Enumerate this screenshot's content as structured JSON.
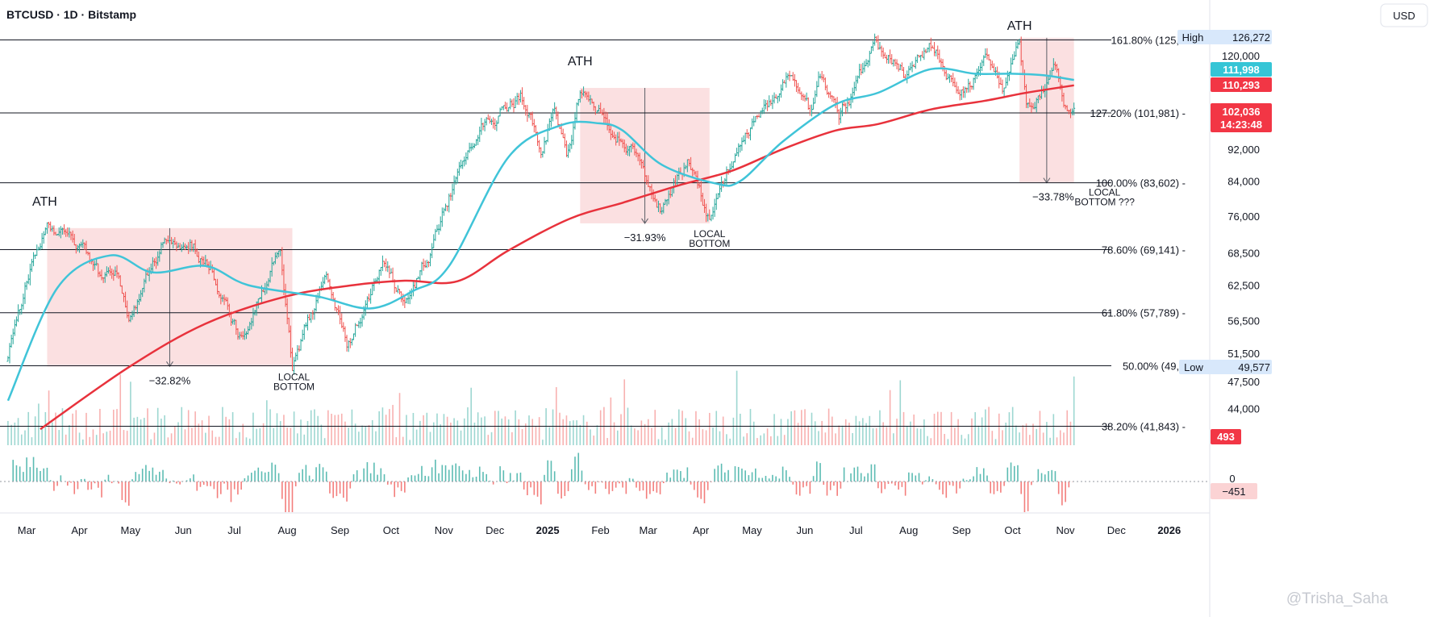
{
  "header": {
    "title": "BTCUSD · 1D · Bitstamp"
  },
  "currency_button": "USD",
  "watermark": "@Trisha_Saha",
  "colors": {
    "up": "#26a69a",
    "down": "#ef5350",
    "ma50": "#40c4d8",
    "ma200": "#e8323c",
    "zone": "#f7c6c9",
    "tag_red": "#f23645",
    "tag_cyan": "#35c5d6",
    "tag_high": "#d8e8fb"
  },
  "chart_data": {
    "type": "candlestick",
    "title": "BTCUSD · 1D · Bitstamp",
    "x_labels": [
      "Mar",
      "Apr",
      "May",
      "Jun",
      "Jul",
      "Aug",
      "Sep",
      "Oct",
      "Nov",
      "Dec",
      "2025",
      "Feb",
      "Mar",
      "Apr",
      "May",
      "Jun",
      "Jul",
      "Aug",
      "Sep",
      "Oct",
      "Nov",
      "Dec",
      "2026"
    ],
    "y_ticks": [
      "120,000",
      "92,000",
      "84,000",
      "76,000",
      "68,500",
      "62,500",
      "56,500",
      "51,500",
      "47,500",
      "44,000"
    ],
    "y_scale": "log",
    "price_path": [
      [
        "2024-02-20",
        51500
      ],
      [
        "2024-03-05",
        67000
      ],
      [
        "2024-03-14",
        73000
      ],
      [
        "2024-04-01",
        70000
      ],
      [
        "2024-04-13",
        64000
      ],
      [
        "2024-04-25",
        63500
      ],
      [
        "2024-05-01",
        57000
      ],
      [
        "2024-05-20",
        70000
      ],
      [
        "2024-06-06",
        71000
      ],
      [
        "2024-06-20",
        64500
      ],
      [
        "2024-07-05",
        54000
      ],
      [
        "2024-07-29",
        69500
      ],
      [
        "2024-08-05",
        49600
      ],
      [
        "2024-08-25",
        64000
      ],
      [
        "2024-09-06",
        52600
      ],
      [
        "2024-09-27",
        66000
      ],
      [
        "2024-10-10",
        59000
      ],
      [
        "2024-10-29",
        72000
      ],
      [
        "2024-11-13",
        90000
      ],
      [
        "2024-11-22",
        99000
      ],
      [
        "2024-12-17",
        107000
      ],
      [
        "2024-12-30",
        92000
      ],
      [
        "2025-01-06",
        102000
      ],
      [
        "2025-01-13",
        90000
      ],
      [
        "2025-01-21",
        109000
      ],
      [
        "2025-02-03",
        101000
      ],
      [
        "2025-02-24",
        89000
      ],
      [
        "2025-03-10",
        78000
      ],
      [
        "2025-03-25",
        88000
      ],
      [
        "2025-04-07",
        74500
      ],
      [
        "2025-04-22",
        93000
      ],
      [
        "2025-05-22",
        111000
      ],
      [
        "2025-06-05",
        101000
      ],
      [
        "2025-06-10",
        110000
      ],
      [
        "2025-06-22",
        99000
      ],
      [
        "2025-07-14",
        123000
      ],
      [
        "2025-08-01",
        113000
      ],
      [
        "2025-08-14",
        124000
      ],
      [
        "2025-09-01",
        108000
      ],
      [
        "2025-09-18",
        117500
      ],
      [
        "2025-09-26",
        109000
      ],
      [
        "2025-10-06",
        126272
      ],
      [
        "2025-10-10",
        105000
      ],
      [
        "2025-10-27",
        115000
      ],
      [
        "2025-11-04",
        101500
      ],
      [
        "2025-11-07",
        102036
      ]
    ],
    "ma50_path": [
      [
        "2024-02-20",
        45000
      ],
      [
        "2024-03-20",
        62000
      ],
      [
        "2024-04-20",
        68000
      ],
      [
        "2024-05-15",
        64800
      ],
      [
        "2024-06-15",
        66000
      ],
      [
        "2024-07-10",
        62500
      ],
      [
        "2024-08-20",
        60500
      ],
      [
        "2024-09-20",
        58500
      ],
      [
        "2024-10-15",
        61500
      ],
      [
        "2024-11-05",
        66000
      ],
      [
        "2024-12-10",
        90000
      ],
      [
        "2025-01-10",
        98500
      ],
      [
        "2025-02-01",
        99000
      ],
      [
        "2025-02-15",
        97000
      ],
      [
        "2025-03-10",
        88000
      ],
      [
        "2025-04-10",
        83500
      ],
      [
        "2025-04-25",
        84000
      ],
      [
        "2025-05-20",
        94000
      ],
      [
        "2025-06-20",
        104500
      ],
      [
        "2025-07-15",
        108000
      ],
      [
        "2025-08-15",
        115500
      ],
      [
        "2025-09-10",
        114000
      ],
      [
        "2025-10-01",
        114000
      ],
      [
        "2025-10-20",
        113500
      ],
      [
        "2025-11-07",
        111998
      ]
    ],
    "ma200_path": [
      [
        "2024-03-10",
        41500
      ],
      [
        "2024-05-01",
        49500
      ],
      [
        "2024-06-15",
        56000
      ],
      [
        "2024-08-01",
        60500
      ],
      [
        "2024-09-10",
        62500
      ],
      [
        "2024-10-10",
        63300
      ],
      [
        "2024-11-10",
        63200
      ],
      [
        "2024-12-10",
        69000
      ],
      [
        "2025-01-15",
        75500
      ],
      [
        "2025-02-15",
        79000
      ],
      [
        "2025-03-20",
        83000
      ],
      [
        "2025-04-20",
        86500
      ],
      [
        "2025-05-20",
        92000
      ],
      [
        "2025-06-20",
        97000
      ],
      [
        "2025-07-15",
        98800
      ],
      [
        "2025-08-15",
        103000
      ],
      [
        "2025-09-15",
        105500
      ],
      [
        "2025-10-10",
        108000
      ],
      [
        "2025-11-07",
        110293
      ]
    ],
    "fib_levels": [
      {
        "label": "161.80% (125,",
        "value": 125500
      },
      {
        "label": "127.20% (101,981)",
        "value": 101981
      },
      {
        "label": "100.00% (83,602)",
        "value": 83602
      },
      {
        "label": "78.60% (69,141)",
        "value": 69141
      },
      {
        "label": "61.80% (57,789)",
        "value": 57789
      },
      {
        "label": "50.00% (49,",
        "value": 49700
      },
      {
        "label": "38.20% (41,843)",
        "value": 41843
      }
    ],
    "drawdown_zones": [
      {
        "from": "2024-03-14",
        "to": "2024-08-05",
        "top": 73500,
        "bottom": 49600,
        "label": "−32.82%",
        "local_bottom_label": [
          "LOCAL",
          "BOTTOM"
        ]
      },
      {
        "from": "2025-01-21",
        "to": "2025-04-07",
        "top": 109500,
        "bottom": 74500,
        "label": "−31.93%",
        "local_bottom_label": [
          "LOCAL",
          "BOTTOM"
        ]
      },
      {
        "from": "2025-10-06",
        "to": "2025-11-07",
        "top": 126272,
        "bottom": 83602,
        "label": "−33.78%",
        "local_bottom_label": [
          "LOCAL",
          "BOTTOM ???"
        ]
      }
    ],
    "ath_labels": [
      "ATH",
      "ATH",
      "ATH"
    ],
    "price_tags": {
      "high": {
        "label": "High",
        "value": "126,272"
      },
      "ma50": "111,998",
      "ma200": "110,293",
      "last": "102,036",
      "countdown": "14:23:48",
      "low": {
        "label": "Low",
        "value": "49,577"
      },
      "volume": "493",
      "oscillator": "−451",
      "oscillator_zero": "0"
    }
  }
}
